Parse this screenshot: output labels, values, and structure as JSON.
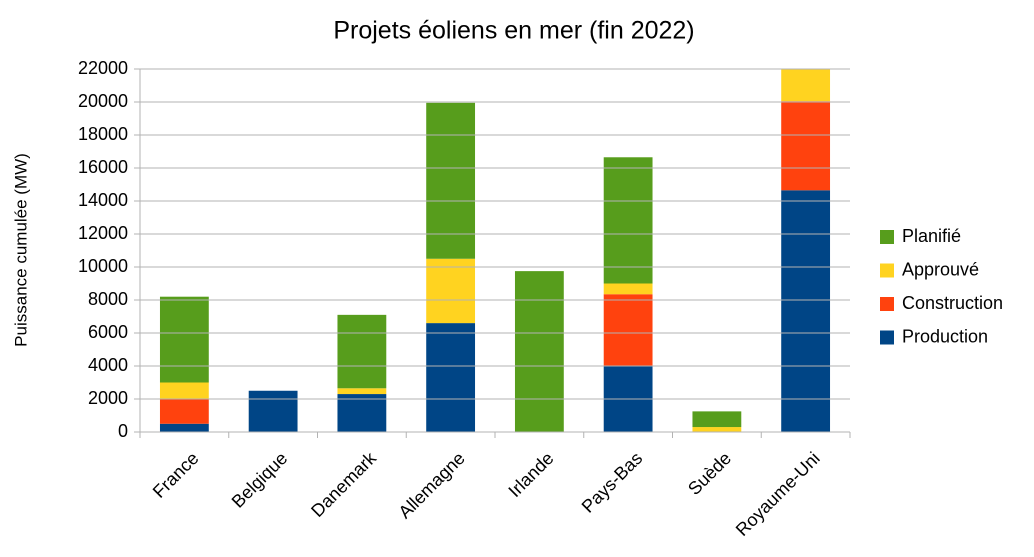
{
  "chart_data": {
    "type": "stacked_bar",
    "title": "Projets éoliens en mer (fin 2022)",
    "y_label": "Puissance cumulée (MW)",
    "categories": [
      "France",
      "Belgique",
      "Danemark",
      "Allemagne",
      "Irlande",
      "Pays-Bas",
      "Suède",
      "Royaume-Uni"
    ],
    "series": [
      {
        "name": "Production",
        "color": "#004586",
        "values": [
          500,
          2500,
          2300,
          6600,
          0,
          4000,
          0,
          14650
        ]
      },
      {
        "name": "Construction",
        "color": "#ff420e",
        "values": [
          1500,
          0,
          0,
          0,
          0,
          4350,
          0,
          5400
        ]
      },
      {
        "name": "Approuvé",
        "color": "#ffd320",
        "values": [
          1000,
          0,
          350,
          3900,
          0,
          650,
          300,
          2000
        ]
      },
      {
        "name": "Planifié",
        "color": "#579d1c",
        "values": [
          5200,
          0,
          4450,
          9450,
          9750,
          7650,
          950,
          0
        ]
      }
    ],
    "ylim": [
      0,
      22000
    ],
    "yticks": [
      0,
      2000,
      4000,
      6000,
      8000,
      10000,
      12000,
      14000,
      16000,
      18000,
      20000,
      22000
    ],
    "grid": true,
    "legend": "right"
  }
}
